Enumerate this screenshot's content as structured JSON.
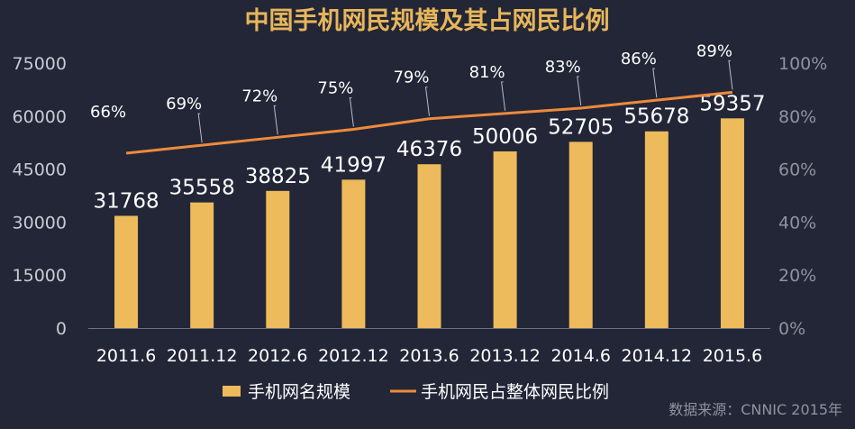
{
  "colors": {
    "background": "#222637",
    "title": "#E8B65A",
    "bar": "#EDBA5C",
    "line": "#EE8A3C",
    "text": "#FFFFFF",
    "axis_text": "#C9CBD2",
    "muted": "#8F939E",
    "axis_line": "#6E727E"
  },
  "chart_data": {
    "type": "bar",
    "title": "中国手机网民规模及其占网民比例",
    "categories": [
      "2011.6",
      "2011.12",
      "2012.6",
      "2012.12",
      "2013.6",
      "2013.12",
      "2014.6",
      "2014.12",
      "2015.6"
    ],
    "series": [
      {
        "name": "手机网名规模",
        "type": "bar",
        "axis": "left",
        "values": [
          31768,
          35558,
          38825,
          41997,
          46376,
          50006,
          52705,
          55678,
          59357
        ],
        "labels": [
          "31768",
          "35558",
          "38825",
          "41997",
          "46376",
          "50006",
          "52705",
          "55678",
          "59357"
        ]
      },
      {
        "name": "手机网民占整体网民比例",
        "type": "line",
        "axis": "right",
        "values": [
          66,
          69,
          72,
          75,
          79,
          81,
          83,
          86,
          89
        ],
        "labels": [
          "66%",
          "69%",
          "72%",
          "75%",
          "79%",
          "81%",
          "83%",
          "86%",
          "89%"
        ]
      }
    ],
    "y_left": {
      "ylim": [
        0,
        75000
      ],
      "ticks": [
        0,
        15000,
        30000,
        45000,
        60000,
        75000
      ],
      "tick_labels": [
        "0",
        "15000",
        "30000",
        "45000",
        "60000",
        "75000"
      ]
    },
    "y_right": {
      "ylim": [
        0,
        100
      ],
      "ticks": [
        0,
        20,
        40,
        60,
        80,
        100
      ],
      "tick_labels": [
        "0%",
        "20%",
        "40%",
        "60%",
        "80%",
        "100%"
      ]
    },
    "grid": false,
    "legend": "bottom"
  },
  "source": "数据来源：CNNIC 2015年"
}
